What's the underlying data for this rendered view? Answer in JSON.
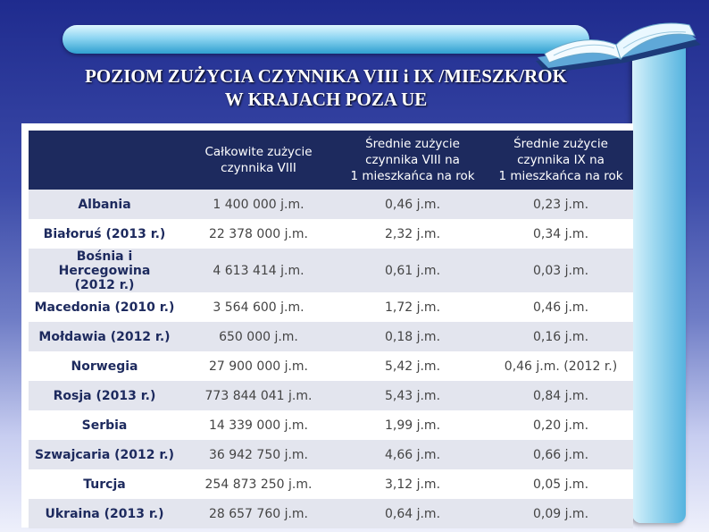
{
  "title": {
    "line1": "POZIOM ZUŻYCIA CZYNNIKA VIII i IX /MIESZK/ROK",
    "line2": "W  KRAJACH  POZA  UE"
  },
  "table": {
    "headers": [
      "",
      "Całkowite zużycie\nczynnika VIII",
      "Średnie zużycie\nczynnika VIII na\n1 mieszkańca na rok",
      "Średnie zużycie\nczynnika IX na\n1 mieszkańca na rok"
    ],
    "rows": [
      {
        "country": "Albania",
        "total": "1 400 000 j.m.",
        "avg8": "0,46 j.m.",
        "avg9": "0,23 j.m."
      },
      {
        "country": "Białoruś (2013 r.)",
        "total": "22 378 000 j.m.",
        "avg8": "2,32 j.m.",
        "avg9": "0,34 j.m."
      },
      {
        "country": "Bośnia i Hercegowina\n(2012 r.)",
        "total": "4 613 414 j.m.",
        "avg8": "0,61 j.m.",
        "avg9": "0,03 j.m."
      },
      {
        "country": "Macedonia (2010 r.)",
        "total": "3 564 600 j.m.",
        "avg8": "1,72 j.m.",
        "avg9": "0,46 j.m."
      },
      {
        "country": "Mołdawia (2012 r.)",
        "total": "650 000 j.m.",
        "avg8": "0,18 j.m.",
        "avg9": "0,16 j.m."
      },
      {
        "country": "Norwegia",
        "total": "27 900 000  j.m.",
        "avg8": "5,42 j.m.",
        "avg9": "0,46 j.m. (2012 r.)"
      },
      {
        "country": "Rosja (2013 r.)",
        "total": "773 844 041 j.m.",
        "avg8": "5,43 j.m.",
        "avg9": "0,84 j.m."
      },
      {
        "country": "Serbia",
        "total": "14 339 000  j.m.",
        "avg8": "1,99 j.m.",
        "avg9": "0,20 j.m."
      },
      {
        "country": "Szwajcaria (2012 r.)",
        "total": "36 942 750 j.m.",
        "avg8": "4,66 j.m.",
        "avg9": "0,66 j.m."
      },
      {
        "country": "Turcja",
        "total": "254 873 250  j.m.",
        "avg8": "3,12 j.m.",
        "avg9": "0,05 j.m."
      },
      {
        "country": "Ukraina (2013 r.)",
        "total": "28 657 760 j.m.",
        "avg8": "0,64 j.m.",
        "avg9": "0,09 j.m."
      }
    ]
  },
  "colors": {
    "header_bg": "#1d2a5e",
    "row_stripe": "#e3e5ee",
    "country_text": "#1d2a5e"
  },
  "icons": {
    "book": "open-book-icon"
  }
}
